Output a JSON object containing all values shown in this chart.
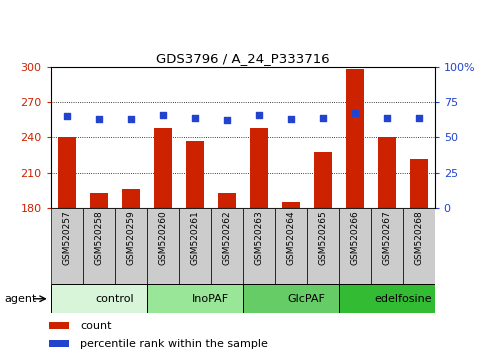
{
  "title": "GDS3796 / A_24_P333716",
  "samples": [
    "GSM520257",
    "GSM520258",
    "GSM520259",
    "GSM520260",
    "GSM520261",
    "GSM520262",
    "GSM520263",
    "GSM520264",
    "GSM520265",
    "GSM520266",
    "GSM520267",
    "GSM520268"
  ],
  "counts": [
    240,
    193,
    196,
    248,
    237,
    193,
    248,
    185,
    228,
    298,
    240,
    222
  ],
  "percentiles": [
    65,
    63,
    63,
    66,
    64,
    62,
    66,
    63,
    64,
    67,
    64,
    64
  ],
  "groups": [
    {
      "label": "control",
      "start": 0,
      "end": 3,
      "color": "#d9f5d9"
    },
    {
      "label": "InoPAF",
      "start": 3,
      "end": 6,
      "color": "#99e699"
    },
    {
      "label": "GlcPAF",
      "start": 6,
      "end": 9,
      "color": "#66cc66"
    },
    {
      "label": "edelfosine",
      "start": 9,
      "end": 12,
      "color": "#33bb33"
    }
  ],
  "ylim_left": [
    180,
    300
  ],
  "ylim_right": [
    0,
    100
  ],
  "yticks_left": [
    180,
    210,
    240,
    270,
    300
  ],
  "yticks_right": [
    0,
    25,
    50,
    75,
    100
  ],
  "ytick_labels_right": [
    "0",
    "25",
    "50",
    "75",
    "100%"
  ],
  "bar_color": "#cc2200",
  "dot_color": "#2244cc",
  "bar_bottom": 180,
  "agent_label": "agent",
  "legend_count": "count",
  "legend_pct": "percentile rank within the sample",
  "tick_color_left": "#cc2200",
  "tick_color_right": "#2244cc",
  "sample_bg_color": "#cccccc"
}
